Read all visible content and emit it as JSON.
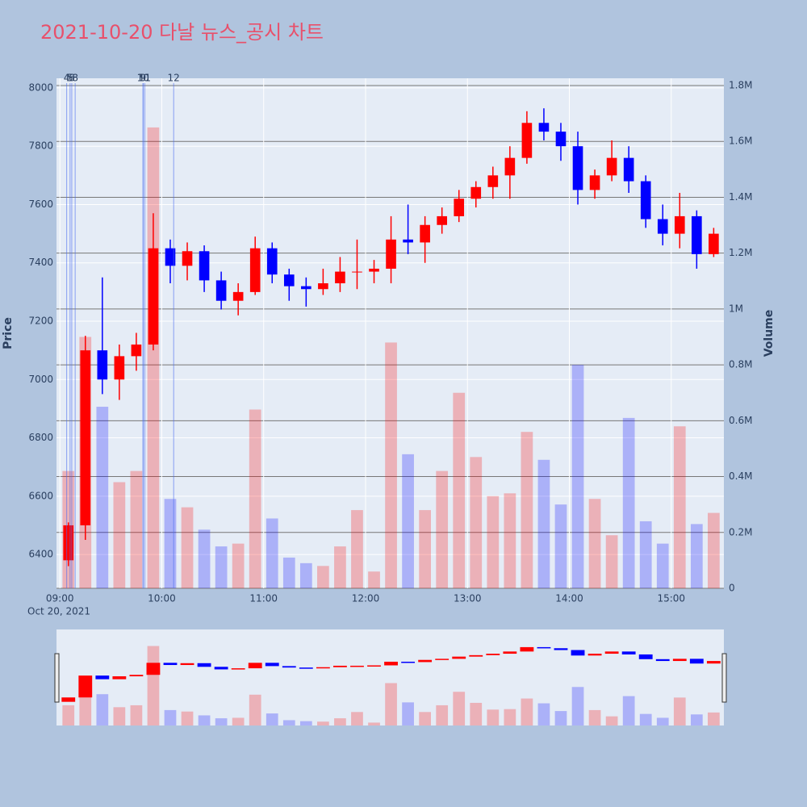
{
  "chart_data": {
    "type": "candlestick",
    "title": "2021-10-20 다날 뉴스_공시 차트",
    "y_label": "Price",
    "y2_label": "Volume",
    "x_date_label": "Oct 20, 2021",
    "x": [
      "09:00",
      "09:10",
      "09:20",
      "09:30",
      "09:40",
      "09:50",
      "10:00",
      "10:10",
      "10:20",
      "10:30",
      "10:40",
      "10:50",
      "11:00",
      "11:10",
      "11:20",
      "11:30",
      "11:40",
      "11:50",
      "12:00",
      "12:10",
      "12:20",
      "12:30",
      "12:40",
      "12:50",
      "13:00",
      "13:10",
      "13:20",
      "13:30",
      "13:40",
      "13:50",
      "14:00",
      "14:10",
      "14:20",
      "14:30",
      "14:40",
      "14:50",
      "15:00",
      "15:10",
      "15:20"
    ],
    "open": [
      6380,
      6500,
      7100,
      7000,
      7080,
      7120,
      7450,
      7390,
      7440,
      7340,
      7270,
      7300,
      7450,
      7360,
      7320,
      7310,
      7330,
      7370,
      7370,
      7380,
      7480,
      7470,
      7530,
      7560,
      7620,
      7660,
      7700,
      7760,
      7880,
      7850,
      7800,
      7650,
      7700,
      7760,
      7680,
      7550,
      7500,
      7560,
      7430
    ],
    "high": [
      6510,
      7150,
      7350,
      7120,
      7160,
      7570,
      7480,
      7470,
      7460,
      7370,
      7330,
      7490,
      7470,
      7380,
      7350,
      7380,
      7420,
      7480,
      7410,
      7560,
      7600,
      7560,
      7590,
      7650,
      7680,
      7730,
      7800,
      7920,
      7930,
      7880,
      7850,
      7720,
      7820,
      7800,
      7700,
      7600,
      7640,
      7580,
      7520
    ],
    "low": [
      6360,
      6450,
      6950,
      6930,
      7030,
      7100,
      7330,
      7340,
      7300,
      7240,
      7220,
      7290,
      7330,
      7270,
      7250,
      7290,
      7300,
      7310,
      7330,
      7330,
      7430,
      7400,
      7500,
      7540,
      7590,
      7620,
      7620,
      7740,
      7820,
      7750,
      7600,
      7620,
      7680,
      7640,
      7520,
      7460,
      7450,
      7380,
      7420
    ],
    "close": [
      6500,
      7100,
      7000,
      7080,
      7120,
      7450,
      7390,
      7440,
      7340,
      7270,
      7300,
      7450,
      7360,
      7320,
      7310,
      7330,
      7370,
      7370,
      7380,
      7480,
      7470,
      7530,
      7560,
      7620,
      7660,
      7700,
      7760,
      7880,
      7850,
      7800,
      7650,
      7700,
      7760,
      7680,
      7550,
      7500,
      7560,
      7430,
      7500
    ],
    "volume": [
      420000,
      900000,
      650000,
      380000,
      420000,
      1650000,
      320000,
      290000,
      210000,
      150000,
      160000,
      640000,
      250000,
      110000,
      90000,
      80000,
      150000,
      280000,
      60000,
      880000,
      480000,
      280000,
      420000,
      700000,
      470000,
      330000,
      340000,
      560000,
      460000,
      300000,
      800000,
      320000,
      190000,
      610000,
      240000,
      160000,
      580000,
      230000,
      270000
    ],
    "up_color": "#ff0000",
    "down_color": "#0000ff",
    "xlim": [
      "08:58",
      "15:31"
    ],
    "xticks": [
      "09:00",
      "10:00",
      "11:00",
      "12:00",
      "13:00",
      "14:00",
      "15:00"
    ],
    "ylim": [
      6284,
      8033
    ],
    "yticks": [
      6400,
      6600,
      6800,
      7000,
      7200,
      7400,
      7600,
      7800,
      8000
    ],
    "y2lim": [
      0,
      1826000
    ],
    "y2ticks": [
      0,
      {
        "value": 200000,
        "label": "0.2M"
      },
      {
        "value": 400000,
        "label": "0.4M"
      },
      {
        "value": 600000,
        "label": "0.6M"
      },
      {
        "value": 800000,
        "label": "0.8M"
      },
      {
        "value": 1000000,
        "label": "1M"
      },
      {
        "value": 1200000,
        "label": "1.2M"
      },
      {
        "value": 1400000,
        "label": "1.4M"
      },
      {
        "value": 1600000,
        "label": "1.6M"
      },
      {
        "value": 1800000,
        "label": "1.8M"
      }
    ],
    "annotations": [
      {
        "x": "09:04",
        "label": "4"
      },
      {
        "x": "09:06",
        "label": "5"
      },
      {
        "x": "09:07",
        "label": "6"
      },
      {
        "x": "09:09",
        "label": "8"
      },
      {
        "x": "09:49",
        "label": "9"
      },
      {
        "x": "09:49",
        "label": "10"
      },
      {
        "x": "09:50",
        "label": "11"
      },
      {
        "x": "10:07",
        "label": "12"
      }
    ],
    "grid": true,
    "range_slider": true
  }
}
